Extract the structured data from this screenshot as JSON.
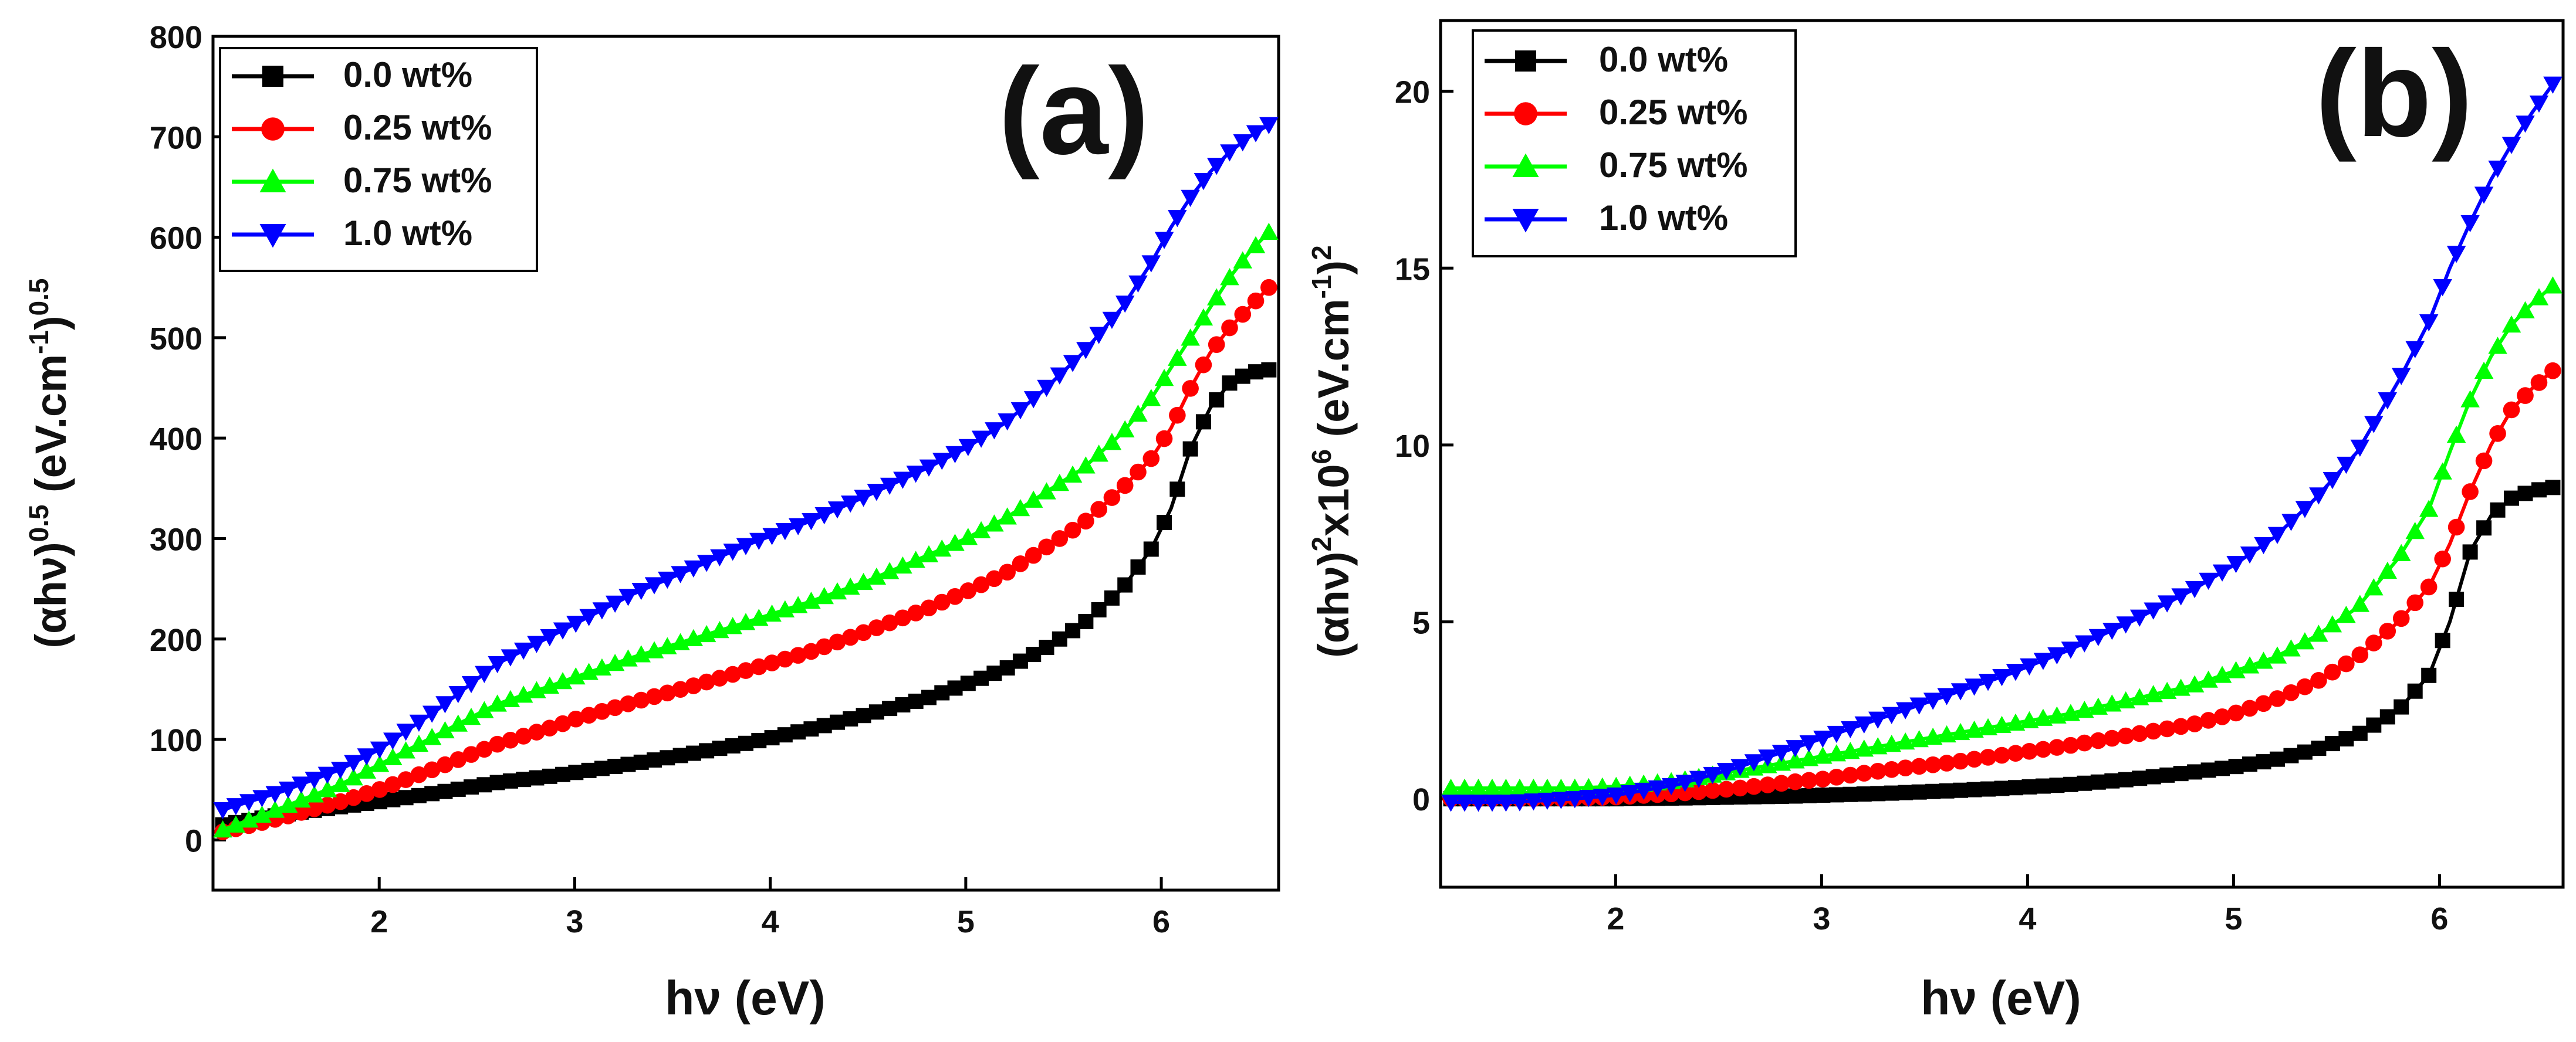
{
  "chart_data": [
    {
      "type": "line",
      "panel_label": "(a)",
      "xlabel": "hν (eV)",
      "ylabel_parts": {
        "base": "(αhν)",
        "exp1": "0.5",
        "mid": " (eV.cm",
        "exp2": "-1",
        "close": ")",
        "exp3": "0.5"
      },
      "xlim": [
        1.15,
        6.6
      ],
      "ylim": [
        -50,
        800
      ],
      "xticks": [
        "2",
        "3",
        "4",
        "5",
        "6"
      ],
      "yticks": [
        "0",
        "100",
        "200",
        "300",
        "400",
        "500",
        "600",
        "700",
        "800"
      ],
      "x_points": [
        1.2,
        1.5,
        1.8,
        2.0,
        2.3,
        2.6,
        2.9,
        3.0,
        3.3,
        3.6,
        3.9,
        4.2,
        4.5,
        4.8,
        5.0,
        5.2,
        5.4,
        5.6,
        5.8,
        5.95,
        6.05,
        6.15,
        6.25,
        6.35,
        6.45,
        6.55
      ],
      "series": [
        {
          "name": "0.0 wt%",
          "color": "#000000",
          "marker": "square",
          "values": [
            15,
            25,
            33,
            38,
            47,
            57,
            64,
            67,
            76,
            86,
            97,
            110,
            125,
            141,
            155,
            170,
            190,
            215,
            250,
            290,
            330,
            390,
            430,
            455,
            465,
            468
          ]
        },
        {
          "name": "0.25 wt%",
          "color": "#ff0000",
          "marker": "circle",
          "values": [
            8,
            22,
            38,
            50,
            72,
            95,
            113,
            120,
            137,
            153,
            170,
            187,
            208,
            230,
            247,
            265,
            290,
            315,
            350,
            380,
            410,
            450,
            485,
            510,
            530,
            550
          ]
        },
        {
          "name": "0.75 wt%",
          "color": "#00ff00",
          "marker": "triangle-up",
          "values": [
            10,
            32,
            55,
            75,
            105,
            135,
            155,
            162,
            182,
            200,
            218,
            237,
            258,
            283,
            300,
            320,
            345,
            370,
            405,
            440,
            470,
            500,
            530,
            560,
            585,
            605
          ]
        },
        {
          "name": "1.0 wt%",
          "color": "#0000ff",
          "marker": "triangle-down",
          "values": [
            30,
            48,
            70,
            90,
            130,
            175,
            205,
            215,
            245,
            270,
            295,
            317,
            343,
            370,
            390,
            415,
            448,
            485,
            530,
            575,
            610,
            640,
            665,
            685,
            700,
            712
          ]
        }
      ]
    },
    {
      "type": "line",
      "panel_label": "(b)",
      "xlabel": "hν (eV)",
      "ylabel_parts": {
        "base": "(αhν)",
        "exp1": "2",
        "mid": "x10",
        "exp2": "6",
        "mid2": " (eV.cm",
        "exp3": "-1",
        "close": ")",
        "exp4": "2"
      },
      "xlim": [
        1.15,
        6.6
      ],
      "ylim": [
        -2.5,
        22
      ],
      "xticks": [
        "2",
        "3",
        "4",
        "5",
        "6"
      ],
      "yticks": [
        "0",
        "5",
        "10",
        "15",
        "20"
      ],
      "x_points": [
        1.2,
        1.5,
        1.8,
        2.0,
        2.3,
        2.6,
        2.9,
        3.0,
        3.3,
        3.6,
        3.9,
        4.2,
        4.5,
        4.8,
        5.0,
        5.2,
        5.4,
        5.6,
        5.8,
        5.95,
        6.05,
        6.15,
        6.25,
        6.35,
        6.45,
        6.55
      ],
      "series": [
        {
          "name": "0.0 wt%",
          "color": "#000000",
          "marker": "square",
          "values": [
            0.0,
            0.0,
            0.0,
            0.0,
            0.02,
            0.05,
            0.08,
            0.1,
            0.15,
            0.22,
            0.3,
            0.4,
            0.55,
            0.75,
            0.9,
            1.1,
            1.4,
            1.8,
            2.5,
            3.5,
            5.0,
            7.0,
            8.0,
            8.5,
            8.7,
            8.8
          ]
        },
        {
          "name": "0.25 wt%",
          "color": "#ff0000",
          "marker": "circle",
          "values": [
            0.0,
            0.0,
            0.02,
            0.05,
            0.15,
            0.3,
            0.5,
            0.55,
            0.8,
            1.0,
            1.25,
            1.5,
            1.8,
            2.1,
            2.4,
            2.8,
            3.3,
            4.0,
            5.0,
            6.0,
            7.2,
            8.7,
            10.0,
            11.0,
            11.6,
            12.1
          ]
        },
        {
          "name": "0.75 wt%",
          "color": "#00ff00",
          "marker": "triangle-up",
          "values": [
            0.3,
            0.3,
            0.3,
            0.35,
            0.5,
            0.8,
            1.1,
            1.2,
            1.5,
            1.8,
            2.1,
            2.4,
            2.8,
            3.2,
            3.6,
            4.0,
            4.6,
            5.4,
            6.8,
            8.2,
            9.8,
            11.3,
            12.5,
            13.4,
            14.0,
            14.5
          ]
        },
        {
          "name": "1.0 wt%",
          "color": "#0000ff",
          "marker": "triangle-down",
          "values": [
            -0.1,
            -0.1,
            0.0,
            0.1,
            0.4,
            0.9,
            1.5,
            1.7,
            2.3,
            2.9,
            3.5,
            4.2,
            5.0,
            5.9,
            6.6,
            7.4,
            8.5,
            9.8,
            11.8,
            13.5,
            15.0,
            16.3,
            17.5,
            18.5,
            19.4,
            20.2
          ]
        }
      ]
    }
  ]
}
